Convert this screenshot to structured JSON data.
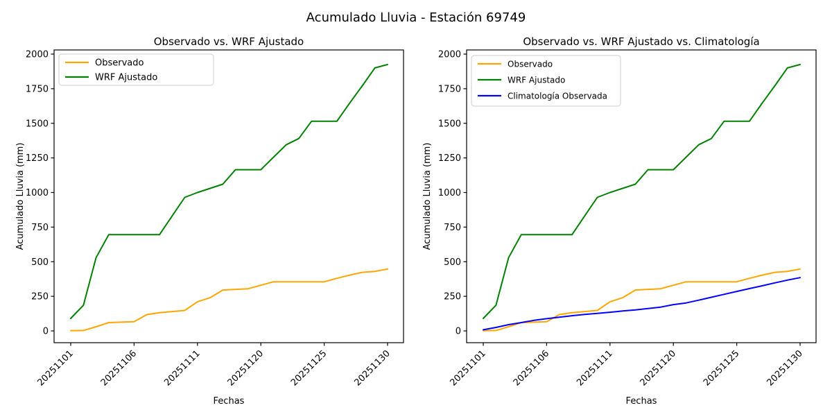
{
  "figure": {
    "suptitle": "Acumulado Lluvia - Estación 69749",
    "background": "#ffffff"
  },
  "colors": {
    "observado": "#ffa500",
    "wrf_ajustado": "#008000",
    "climatologia": "#0000ff",
    "axis": "#000000",
    "legend_border": "#cccccc"
  },
  "chart_data": [
    {
      "type": "line",
      "title": "Observado vs. WRF Ajustado",
      "x_axis": {
        "label": "Fechas",
        "n_points": 26,
        "tick_indices": [
          0,
          5,
          10,
          15,
          20,
          25
        ],
        "tick_labels": [
          "20251101",
          "20251106",
          "20251111",
          "20251120",
          "20251125",
          "20251130"
        ],
        "tick_rotation_deg": 45
      },
      "y_axis": {
        "label": "Acumulado Lluvia (mm)",
        "ticks": [
          0,
          250,
          500,
          750,
          1000,
          1250,
          1500,
          1750,
          2000
        ],
        "lim": [
          0,
          2030
        ]
      },
      "grid": false,
      "legend_position": "upper-left",
      "series": [
        {
          "key": "observado",
          "name": "Observado",
          "color": "#ffa500",
          "values": [
            2,
            3,
            30,
            60,
            63,
            66,
            118,
            132,
            140,
            148,
            210,
            240,
            295,
            300,
            305,
            330,
            355,
            355,
            355,
            355,
            355,
            380,
            403,
            423,
            430,
            447
          ]
        },
        {
          "key": "wrf-ajustado",
          "name": "WRF Ajustado",
          "color": "#008000",
          "values": [
            90,
            185,
            530,
            695,
            695,
            695,
            695,
            695,
            830,
            965,
            1000,
            1030,
            1060,
            1165,
            1165,
            1165,
            1255,
            1345,
            1390,
            1515,
            1515,
            1515,
            1645,
            1770,
            1900,
            1925
          ]
        }
      ]
    },
    {
      "type": "line",
      "title": "Observado vs. WRF Ajustado vs. Climatología",
      "x_axis": {
        "label": "Fechas",
        "n_points": 26,
        "tick_indices": [
          0,
          5,
          10,
          15,
          20,
          25
        ],
        "tick_labels": [
          "20251101",
          "20251106",
          "20251111",
          "20251120",
          "20251125",
          "20251130"
        ],
        "tick_rotation_deg": 45
      },
      "y_axis": {
        "label": "Acumulado Lluvia (mm)",
        "ticks": [
          0,
          250,
          500,
          750,
          1000,
          1250,
          1500,
          1750,
          2000
        ],
        "lim": [
          0,
          2030
        ]
      },
      "grid": false,
      "legend_position": "upper-left",
      "series": [
        {
          "key": "observado",
          "name": "Observado",
          "color": "#ffa500",
          "values": [
            2,
            3,
            30,
            60,
            63,
            66,
            118,
            132,
            140,
            148,
            210,
            240,
            295,
            300,
            305,
            330,
            355,
            355,
            355,
            355,
            355,
            380,
            403,
            423,
            430,
            447
          ]
        },
        {
          "key": "wrf-ajustado",
          "name": "WRF Ajustado",
          "color": "#008000",
          "values": [
            90,
            185,
            530,
            695,
            695,
            695,
            695,
            695,
            830,
            965,
            1000,
            1030,
            1060,
            1165,
            1165,
            1165,
            1255,
            1345,
            1390,
            1515,
            1515,
            1515,
            1645,
            1770,
            1900,
            1925
          ]
        },
        {
          "key": "climatologia-observada",
          "name": "Climatología Observada",
          "color": "#0000ff",
          "values": [
            8,
            25,
            45,
            60,
            76,
            88,
            99,
            110,
            119,
            127,
            135,
            144,
            152,
            162,
            172,
            190,
            202,
            222,
            243,
            264,
            285,
            306,
            326,
            347,
            367,
            385
          ]
        }
      ]
    }
  ]
}
